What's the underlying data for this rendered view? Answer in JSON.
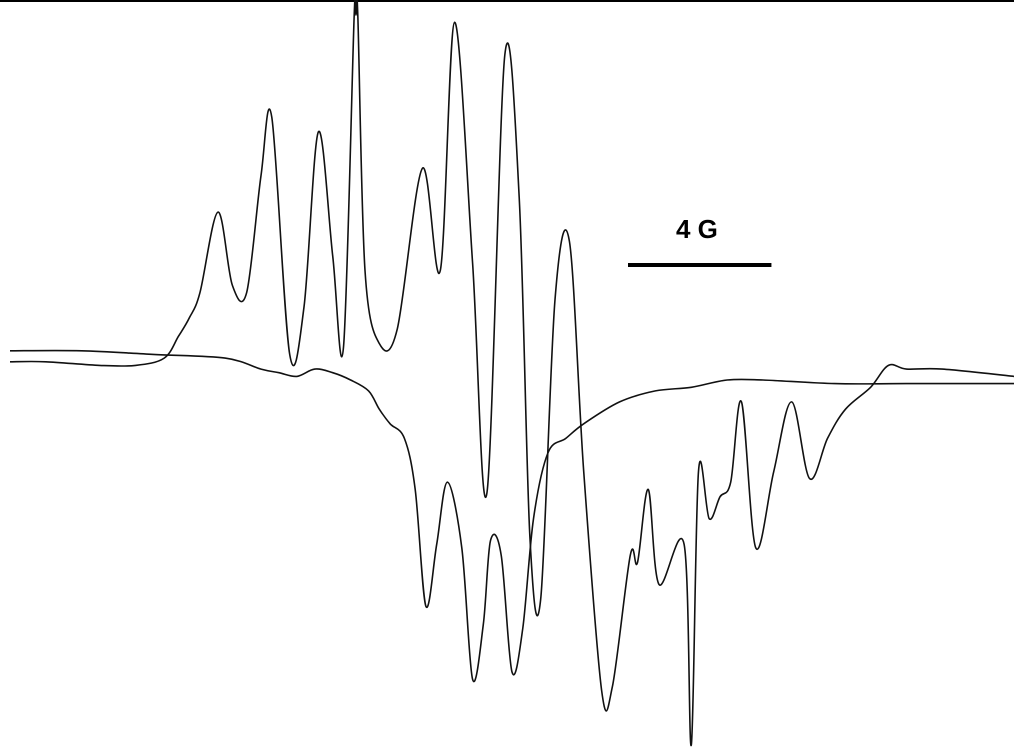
{
  "chart_data": {
    "type": "line",
    "title": "",
    "xlabel": "",
    "ylabel": "",
    "grid": false,
    "legend": "none",
    "scale_bar": {
      "label": "4 G",
      "length_gauss": 4
    },
    "x_unit": "G",
    "y_unit": "arbitrary",
    "xlim": [
      0,
      28
    ],
    "ylim": [
      -1.0,
      1.0
    ],
    "series": [
      {
        "points": [
          [
            0.0,
            0.08
          ],
          [
            2.0,
            0.08
          ],
          [
            4.0,
            0.07
          ],
          [
            6.0,
            0.06
          ],
          [
            7.0,
            0.03
          ],
          [
            7.5,
            0.02
          ],
          [
            8.0,
            0.01
          ],
          [
            8.5,
            0.03
          ],
          [
            9.0,
            0.02
          ],
          [
            9.5,
            0.0
          ],
          [
            10.0,
            -0.03
          ],
          [
            10.3,
            -0.08
          ],
          [
            10.6,
            -0.12
          ],
          [
            11.0,
            -0.16
          ],
          [
            11.3,
            -0.3
          ],
          [
            11.6,
            -0.62
          ],
          [
            11.9,
            -0.45
          ],
          [
            12.2,
            -0.28
          ],
          [
            12.6,
            -0.46
          ],
          [
            12.9,
            -0.82
          ],
          [
            13.2,
            -0.67
          ],
          [
            13.4,
            -0.44
          ],
          [
            13.7,
            -0.48
          ],
          [
            14.0,
            -0.8
          ],
          [
            14.3,
            -0.68
          ],
          [
            14.6,
            -0.38
          ],
          [
            15.0,
            -0.2
          ],
          [
            15.5,
            -0.16
          ],
          [
            16.0,
            -0.12
          ],
          [
            17.0,
            -0.06
          ],
          [
            18.0,
            -0.03
          ],
          [
            19.0,
            -0.02
          ],
          [
            20.0,
            0.0
          ],
          [
            21.0,
            0.0
          ],
          [
            23.0,
            -0.01
          ],
          [
            25.0,
            -0.01
          ],
          [
            28.0,
            -0.01
          ]
        ]
      },
      {
        "points": [
          [
            0.0,
            0.05
          ],
          [
            1.0,
            0.05
          ],
          [
            2.5,
            0.04
          ],
          [
            3.5,
            0.04
          ],
          [
            4.3,
            0.06
          ],
          [
            4.7,
            0.12
          ],
          [
            5.0,
            0.17
          ],
          [
            5.3,
            0.24
          ],
          [
            5.8,
            0.46
          ],
          [
            6.2,
            0.26
          ],
          [
            6.6,
            0.24
          ],
          [
            7.0,
            0.56
          ],
          [
            7.3,
            0.72
          ],
          [
            7.8,
            0.07
          ],
          [
            8.2,
            0.2
          ],
          [
            8.6,
            0.68
          ],
          [
            9.0,
            0.34
          ],
          [
            9.3,
            0.09
          ],
          [
            9.6,
            1.0
          ],
          [
            9.65,
            1.0
          ],
          [
            9.7,
            1.0
          ],
          [
            9.9,
            0.3
          ],
          [
            10.3,
            0.1
          ],
          [
            10.8,
            0.14
          ],
          [
            11.5,
            0.58
          ],
          [
            12.0,
            0.3
          ],
          [
            12.4,
            0.98
          ],
          [
            12.9,
            0.32
          ],
          [
            13.3,
            -0.31
          ],
          [
            13.8,
            0.89
          ],
          [
            14.2,
            0.5
          ],
          [
            14.5,
            -0.43
          ],
          [
            14.8,
            -0.6
          ],
          [
            15.2,
            0.22
          ],
          [
            15.6,
            0.38
          ],
          [
            16.0,
            -0.25
          ],
          [
            16.5,
            -0.85
          ],
          [
            16.8,
            -0.84
          ],
          [
            17.3,
            -0.48
          ],
          [
            17.5,
            -0.5
          ],
          [
            17.8,
            -0.3
          ],
          [
            18.1,
            -0.56
          ],
          [
            18.8,
            -0.45
          ],
          [
            19.0,
            -1.0
          ],
          [
            19.2,
            -0.25
          ],
          [
            19.5,
            -0.38
          ],
          [
            19.8,
            -0.32
          ],
          [
            20.1,
            -0.28
          ],
          [
            20.4,
            -0.06
          ],
          [
            20.8,
            -0.46
          ],
          [
            21.3,
            -0.25
          ],
          [
            21.8,
            -0.06
          ],
          [
            22.3,
            -0.27
          ],
          [
            22.8,
            -0.16
          ],
          [
            23.3,
            -0.08
          ],
          [
            24.0,
            -0.02
          ],
          [
            24.5,
            0.04
          ],
          [
            25.0,
            0.03
          ],
          [
            26.0,
            0.03
          ],
          [
            28.0,
            0.01
          ]
        ]
      }
    ]
  }
}
